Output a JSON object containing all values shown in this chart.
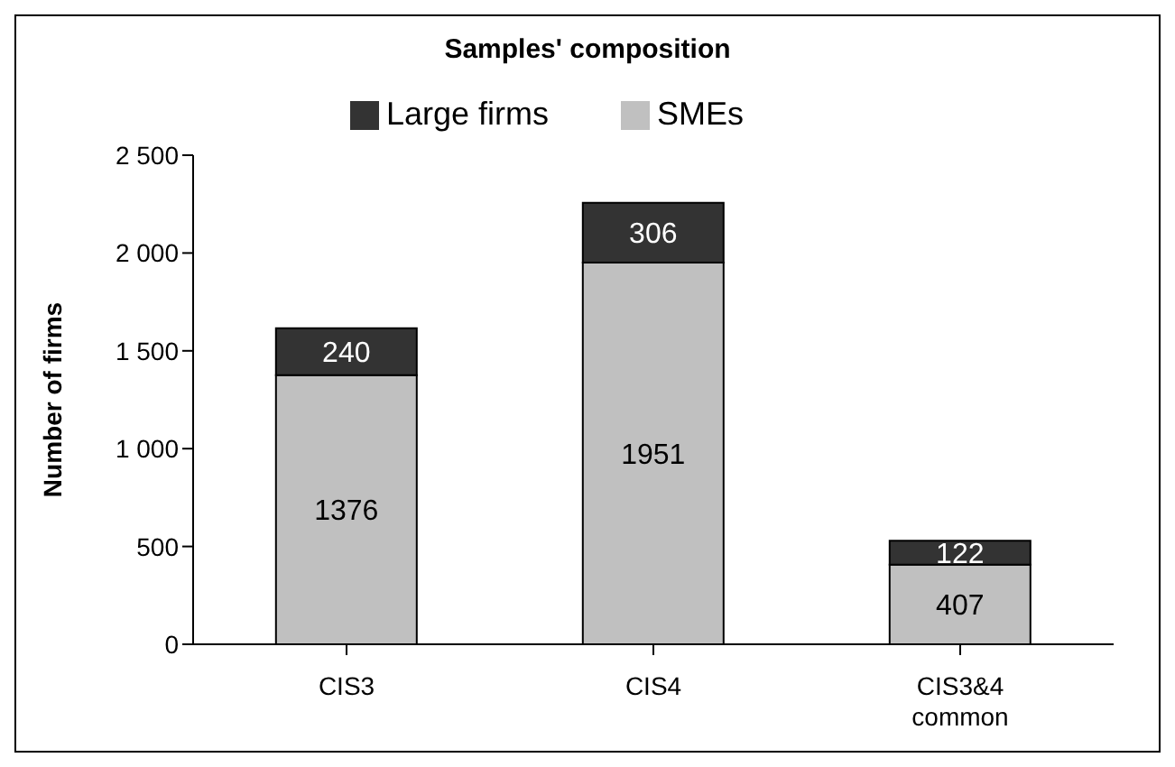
{
  "chart_data": {
    "type": "bar",
    "title": "Samples' composition",
    "ylabel": "Number of firms",
    "categories": [
      "CIS3",
      "CIS4",
      "CIS3&4 common"
    ],
    "stacked": true,
    "series": [
      {
        "name": "SMEs",
        "color": "#c0c0c0",
        "values": [
          1376,
          1951,
          407
        ]
      },
      {
        "name": "Large firms",
        "color": "#333333",
        "values": [
          240,
          306,
          122
        ]
      }
    ],
    "ylim": [
      0,
      2500
    ],
    "yticks": [
      0,
      500,
      {
        "value": 1000,
        "label": "1 000"
      },
      {
        "value": 1500,
        "label": "1 500"
      },
      {
        "value": 2000,
        "label": "2 000"
      },
      {
        "value": 2500,
        "label": "2 500"
      }
    ],
    "data_labels": true,
    "legend": "top",
    "grid": false
  }
}
